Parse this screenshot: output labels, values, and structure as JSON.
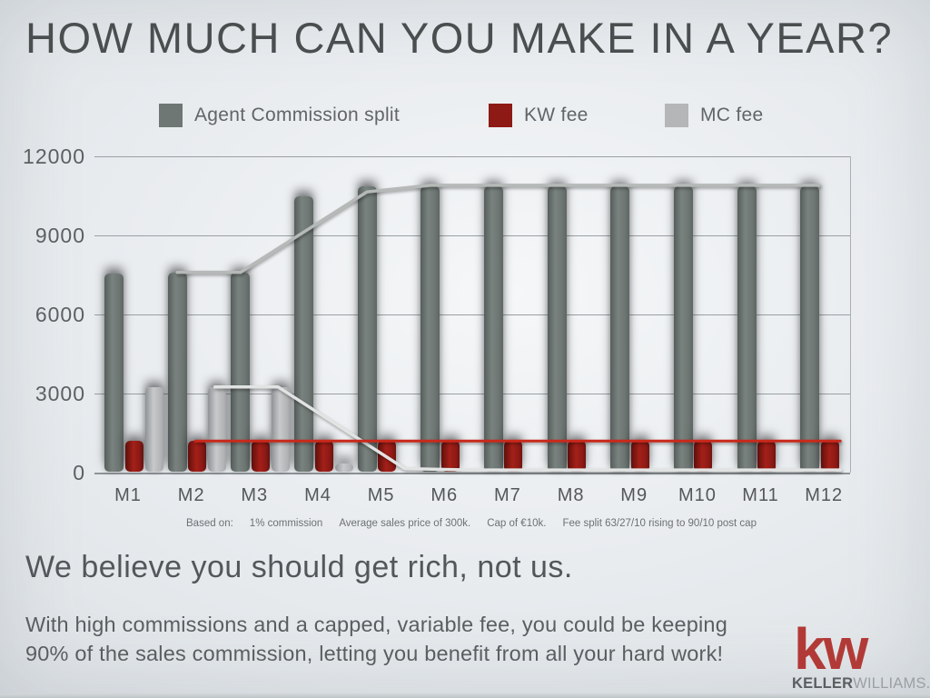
{
  "slide": {
    "title": "HOW MUCH CAN YOU MAKE IN A YEAR?",
    "headline": "We believe you should get rich, not us.",
    "body_line1": "With high commissions and a capped, variable fee, you could be keeping",
    "body_line2": "90% of the sales commission, letting you benefit from all your hard work!",
    "footnote": {
      "parts": [
        "Based on:",
        "1% commission",
        "Average sales price of 300k.",
        "Cap of €10k.",
        "Fee split 63/27/10 rising to 90/10 post cap"
      ]
    },
    "logo": {
      "kw": "kw",
      "brand_bold": "KELLER",
      "brand_light": "WILLIAMS."
    }
  },
  "chart_data": {
    "type": "bar",
    "title": "",
    "xlabel": "",
    "ylabel": "",
    "categories": [
      "M1",
      "M2",
      "M3",
      "M4",
      "M5",
      "M6",
      "M7",
      "M8",
      "M9",
      "M10",
      "M11",
      "M12"
    ],
    "ylim": [
      0,
      12000
    ],
    "yticks": [
      0,
      3000,
      6000,
      9000,
      12000
    ],
    "grid": "horizontal",
    "legend_position": "top",
    "series": [
      {
        "key": "agent",
        "name": "Agent Commission split",
        "color": "#6e7773",
        "values": [
          7550,
          7600,
          7600,
          10500,
          10850,
          10850,
          10850,
          10850,
          10850,
          10850,
          10850,
          10850
        ]
      },
      {
        "key": "kw",
        "name": "KW fee",
        "color": "#8e1a15",
        "values": [
          1200,
          1200,
          1200,
          1200,
          1200,
          1200,
          1200,
          1200,
          1200,
          1200,
          1200,
          1200
        ]
      },
      {
        "key": "mc",
        "name": "MC fee",
        "color": "#b4b6b8",
        "values": [
          3250,
          3250,
          3250,
          350,
          0,
          0,
          0,
          0,
          0,
          0,
          0,
          0
        ]
      }
    ],
    "lines": [
      {
        "key": "mc",
        "name": "mc-fee-trend-line",
        "color": "#e2e4e3",
        "width": 3.5,
        "points": [
          [
            "M2",
            3250
          ],
          [
            "M3",
            3250
          ],
          [
            "M5",
            150
          ],
          [
            "M6",
            100
          ],
          [
            "M12",
            100
          ]
        ]
      },
      {
        "key": "agent",
        "name": "agent-commission-trend-line",
        "color": "#b5b9b7",
        "width": 3.5,
        "points": [
          [
            "M2",
            7600
          ],
          [
            "M3",
            7600
          ],
          [
            "M5",
            10650
          ],
          [
            "M6",
            10900
          ],
          [
            "M12",
            10900
          ]
        ]
      },
      {
        "key": "kw",
        "name": "kw-fee-trend-line",
        "color": "#c9291b",
        "width": 3,
        "points": [
          [
            "M2",
            1200
          ],
          [
            "M12",
            1200
          ]
        ]
      }
    ]
  }
}
